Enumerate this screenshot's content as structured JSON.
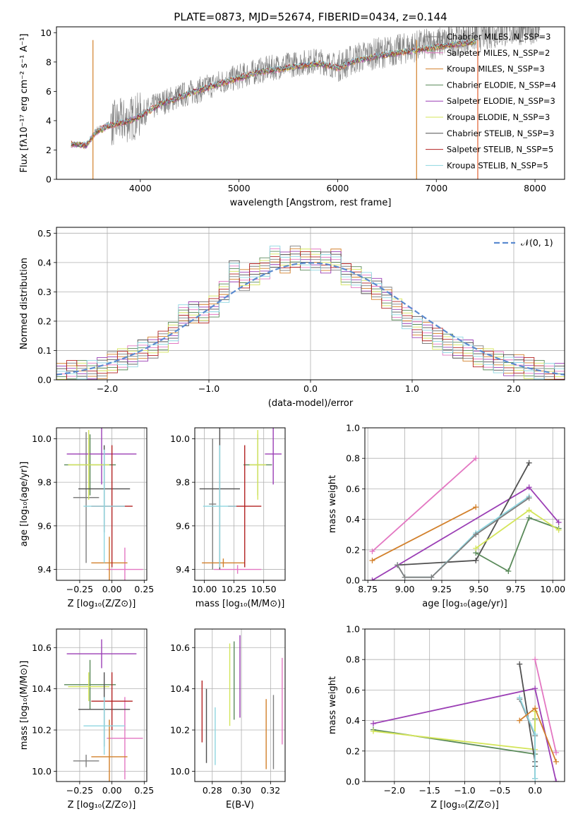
{
  "figure": {
    "title": "PLATE=0873, MJD=52674, FIBERID=0434, z=0.144"
  },
  "chart_data": [
    {
      "id": "spectrum",
      "type": "line",
      "xlabel": "wavelength [Angstrom, rest frame]",
      "ylabel": "Flux [fλ10⁻¹⁷ erg cm⁻² s⁻¹ A⁻¹]",
      "xlim": [
        3150,
        8300
      ],
      "ylim": [
        0,
        10.4
      ],
      "xticks": [
        4000,
        5000,
        6000,
        7000,
        8000
      ],
      "yticks": [
        0,
        2,
        4,
        6,
        8,
        10
      ],
      "observed": {
        "color": "#808080",
        "x": [
          3300,
          3450,
          3550,
          3700,
          3850,
          4000,
          4200,
          4400,
          4600,
          4800,
          5000,
          5200,
          5400,
          5600,
          5800,
          6000,
          6200,
          6400,
          6600,
          6800,
          7000,
          7200,
          7400,
          7600,
          7800,
          8000
        ],
        "y": [
          2.4,
          2.3,
          3.3,
          3.8,
          4.0,
          4.4,
          5.2,
          5.7,
          6.1,
          6.6,
          7.0,
          7.4,
          7.7,
          7.9,
          8.1,
          7.7,
          8.3,
          8.6,
          8.8,
          9.1,
          9.3,
          9.5,
          9.8,
          10.0,
          10.2,
          10.3
        ]
      },
      "legend_position": "upper right",
      "series": [
        {
          "name": "Chabrier MILES, N_SSP=3",
          "color": "#7f7f7f"
        },
        {
          "name": "Salpeter MILES, N_SSP=2",
          "color": "#e377c2"
        },
        {
          "name": "Kroupa MILES, N_SSP=3",
          "color": "#d2802b"
        },
        {
          "name": "Chabrier ELODIE, N_SSP=4",
          "color": "#5a8a5a"
        },
        {
          "name": "Salpeter ELODIE, N_SSP=3",
          "color": "#9b3fb5"
        },
        {
          "name": "Kroupa ELODIE, N_SSP=3",
          "color": "#d4e55a"
        },
        {
          "name": "Chabrier STELIB, N_SSP=3",
          "color": "#505050"
        },
        {
          "name": "Salpeter STELIB, N_SSP=5",
          "color": "#b22222"
        },
        {
          "name": "Kroupa STELIB, N_SSP=5",
          "color": "#8ed6e0"
        }
      ],
      "model": {
        "x": [
          3300,
          3450,
          3550,
          3700,
          3850,
          4000,
          4200,
          4400,
          4600,
          4800,
          5000,
          5200,
          5400,
          5600,
          5800,
          6000,
          6200,
          6400,
          6600,
          6800,
          7000,
          7200,
          7400
        ],
        "y": [
          2.4,
          2.3,
          3.2,
          3.7,
          3.9,
          4.3,
          5.1,
          5.6,
          6.1,
          6.5,
          6.9,
          7.3,
          7.5,
          7.7,
          7.9,
          7.6,
          8.1,
          8.4,
          8.6,
          8.8,
          9.0,
          9.2,
          9.4
        ]
      },
      "legend": [
        "Chabrier MILES, N_SSP=3",
        "Salpeter MILES, N_SSP=2",
        "Kroupa MILES, N_SSP=3",
        "Chabrier ELODIE, N_SSP=4",
        "Salpeter ELODIE, N_SSP=3",
        "Kroupa ELODIE, N_SSP=3",
        "Chabrier STELIB, N_SSP=3",
        "Salpeter STELIB, N_SSP=5",
        "Kroupa STELIB, N_SSP=5"
      ]
    },
    {
      "id": "residuals",
      "type": "histogram",
      "xlabel": "(data-model)/error",
      "ylabel": "Normed distribution",
      "xlim": [
        -2.5,
        2.5
      ],
      "ylim": [
        0,
        0.52
      ],
      "xticks": [
        -2,
        -1,
        0,
        1,
        2
      ],
      "yticks": [
        0.0,
        0.1,
        0.2,
        0.3,
        0.4,
        0.5
      ],
      "bin_edges": [
        -2.5,
        -2.4,
        -2.3,
        -2.2,
        -2.1,
        -2.0,
        -1.9,
        -1.8,
        -1.7,
        -1.6,
        -1.5,
        -1.4,
        -1.3,
        -1.2,
        -1.1,
        -1.0,
        -0.9,
        -0.8,
        -0.7,
        -0.6,
        -0.5,
        -0.4,
        -0.3,
        -0.2,
        -0.1,
        0.0,
        0.1,
        0.2,
        0.3,
        0.4,
        0.5,
        0.6,
        0.7,
        0.8,
        0.9,
        1.0,
        1.1,
        1.2,
        1.3,
        1.4,
        1.5,
        1.6,
        1.7,
        1.8,
        1.9,
        2.0,
        2.1,
        2.2,
        2.3,
        2.4,
        2.5
      ],
      "counts": [
        0.02,
        0.03,
        0.03,
        0.03,
        0.04,
        0.06,
        0.07,
        0.08,
        0.1,
        0.11,
        0.13,
        0.16,
        0.22,
        0.23,
        0.23,
        0.25,
        0.3,
        0.37,
        0.34,
        0.36,
        0.38,
        0.42,
        0.4,
        0.42,
        0.41,
        0.41,
        0.4,
        0.41,
        0.36,
        0.35,
        0.33,
        0.31,
        0.28,
        0.24,
        0.21,
        0.18,
        0.16,
        0.14,
        0.12,
        0.11,
        0.1,
        0.08,
        0.07,
        0.06,
        0.05,
        0.05,
        0.04,
        0.03,
        0.02,
        0.02
      ],
      "gaussian": {
        "name": "𝒩(0, 1)",
        "color": "#5b8bd0",
        "style": "dashed"
      }
    },
    {
      "id": "age-vs-Z",
      "type": "errorbar",
      "xlabel": "Z [log₁₀(Z/Z⊙)]",
      "ylabel": "age  [log₁₀(age/yr)]",
      "xlim": [
        -0.43,
        0.27
      ],
      "ylim": [
        9.35,
        10.05
      ],
      "xticks": [
        -0.25,
        0.0,
        0.25
      ],
      "yticks": [
        9.4,
        9.6,
        9.8,
        10.0
      ],
      "points": [
        {
          "color": "#7f7f7f",
          "x": -0.2,
          "xerr": 0.1,
          "y": 9.73,
          "yerr": 0.3
        },
        {
          "color": "#e377c2",
          "x": 0.1,
          "xerr": 0.14,
          "y": 9.4,
          "yerr": 0.1
        },
        {
          "color": "#d2802b",
          "x": -0.02,
          "xerr": 0.14,
          "y": 9.43,
          "yerr": 0.12
        },
        {
          "color": "#5a8a5a",
          "x": -0.17,
          "xerr": 0.2,
          "y": 9.88,
          "yerr": 0.14
        },
        {
          "color": "#9b3fb5",
          "x": -0.08,
          "xerr": 0.27,
          "y": 9.93,
          "yerr": 0.14
        },
        {
          "color": "#d4e55a",
          "x": -0.18,
          "xerr": 0.16,
          "y": 9.88,
          "yerr": 0.16
        },
        {
          "color": "#505050",
          "x": -0.06,
          "xerr": 0.2,
          "y": 9.77,
          "yerr": 0.2
        },
        {
          "color": "#b22222",
          "x": 0.0,
          "xerr": 0.16,
          "y": 9.69,
          "yerr": 0.28
        },
        {
          "color": "#8ed6e0",
          "x": -0.06,
          "xerr": 0.16,
          "y": 9.69,
          "yerr": 0.26
        }
      ]
    },
    {
      "id": "age-vs-mass",
      "type": "errorbar",
      "xlabel": "mass [log₁₀(M/M⊙)]",
      "ylabel": "",
      "xlim": [
        9.92,
        10.68
      ],
      "ylim": [
        9.35,
        10.05
      ],
      "xticks": [
        10.0,
        10.25,
        10.5
      ],
      "yticks": [
        9.4,
        9.6,
        9.8,
        10.0
      ],
      "points": [
        {
          "color": "#7f7f7f",
          "x": 10.07,
          "xerr": 0.03,
          "y": 9.7,
          "yerr": 0.3
        },
        {
          "color": "#e377c2",
          "x": 10.28,
          "xerr": 0.2,
          "y": 9.4,
          "yerr": 0.02
        },
        {
          "color": "#d2802b",
          "x": 10.16,
          "xerr": 0.18,
          "y": 9.43,
          "yerr": 0.02
        },
        {
          "color": "#5a8a5a",
          "x": 10.45,
          "xerr": 0.12,
          "y": 9.88,
          "yerr": 0.14
        },
        {
          "color": "#9b3fb5",
          "x": 10.58,
          "xerr": 0.07,
          "y": 9.93,
          "yerr": 0.14
        },
        {
          "color": "#d4e55a",
          "x": 10.45,
          "xerr": 0.07,
          "y": 9.88,
          "yerr": 0.16
        },
        {
          "color": "#505050",
          "x": 10.13,
          "xerr": 0.17,
          "y": 9.77,
          "yerr": 0.37
        },
        {
          "color": "#b22222",
          "x": 10.34,
          "xerr": 0.14,
          "y": 9.69,
          "yerr": 0.28
        },
        {
          "color": "#8ed6e0",
          "x": 10.13,
          "xerr": 0.14,
          "y": 9.69,
          "yerr": 0.28
        }
      ]
    },
    {
      "id": "weight-vs-age",
      "type": "line",
      "xlabel": "age  [log₁₀(age/yr)]",
      "ylabel": "mass weight",
      "xlim": [
        8.73,
        10.08
      ],
      "ylim": [
        0,
        1.0
      ],
      "xticks": [
        8.75,
        9.0,
        9.25,
        9.5,
        9.75,
        10.0
      ],
      "yticks": [
        0.0,
        0.2,
        0.4,
        0.6,
        0.8,
        1.0
      ],
      "series": [
        {
          "color": "#e377c2",
          "x": [
            8.78,
            9.48
          ],
          "y": [
            0.19,
            0.8
          ]
        },
        {
          "color": "#d2802b",
          "x": [
            8.78,
            9.48
          ],
          "y": [
            0.13,
            0.48
          ]
        },
        {
          "color": "#9b3fb5",
          "x": [
            8.78,
            9.84,
            10.04
          ],
          "y": [
            0.0,
            0.61,
            0.38
          ]
        },
        {
          "color": "#505050",
          "x": [
            8.95,
            9.48,
            9.84
          ],
          "y": [
            0.1,
            0.13,
            0.77
          ]
        },
        {
          "color": "#8ed6e0",
          "x": [
            8.95,
            9.0,
            9.18,
            9.48,
            9.84
          ],
          "y": [
            0.1,
            0.02,
            0.02,
            0.31,
            0.55
          ]
        },
        {
          "color": "#7f7f7f",
          "x": [
            8.95,
            9.0,
            9.18,
            9.48,
            9.84
          ],
          "y": [
            0.1,
            0.02,
            0.02,
            0.3,
            0.54
          ]
        },
        {
          "color": "#5a8a5a",
          "x": [
            9.48,
            9.7,
            9.84,
            10.04
          ],
          "y": [
            0.18,
            0.06,
            0.41,
            0.34
          ]
        },
        {
          "color": "#d4e55a",
          "x": [
            9.48,
            9.84,
            10.04
          ],
          "y": [
            0.21,
            0.46,
            0.33
          ]
        }
      ]
    },
    {
      "id": "mass-vs-Z",
      "type": "errorbar",
      "xlabel": "Z [log₁₀(Z/Z⊙)]",
      "ylabel": "mass [log₁₀(M/M⊙)]",
      "xlim": [
        -0.43,
        0.27
      ],
      "ylim": [
        9.95,
        10.69
      ],
      "xticks": [
        -0.25,
        0.0,
        0.25
      ],
      "yticks": [
        10.0,
        10.2,
        10.4,
        10.6
      ],
      "points": [
        {
          "color": "#7f7f7f",
          "x": -0.2,
          "xerr": 0.1,
          "y": 10.05,
          "yerr": 0.03
        },
        {
          "color": "#e377c2",
          "x": 0.1,
          "xerr": 0.14,
          "y": 10.16,
          "yerr": 0.2
        },
        {
          "color": "#d2802b",
          "x": -0.02,
          "xerr": 0.14,
          "y": 10.07,
          "yerr": 0.18
        },
        {
          "color": "#5a8a5a",
          "x": -0.17,
          "xerr": 0.2,
          "y": 10.42,
          "yerr": 0.12
        },
        {
          "color": "#9b3fb5",
          "x": -0.08,
          "xerr": 0.27,
          "y": 10.57,
          "yerr": 0.07
        },
        {
          "color": "#d4e55a",
          "x": -0.18,
          "xerr": 0.16,
          "y": 10.41,
          "yerr": 0.07
        },
        {
          "color": "#505050",
          "x": -0.06,
          "xerr": 0.2,
          "y": 10.3,
          "yerr": 0.18
        },
        {
          "color": "#b22222",
          "x": 0.0,
          "xerr": 0.16,
          "y": 10.34,
          "yerr": 0.14
        },
        {
          "color": "#8ed6e0",
          "x": -0.06,
          "xerr": 0.16,
          "y": 10.22,
          "yerr": 0.14
        }
      ]
    },
    {
      "id": "mass-vs-ebv",
      "type": "errorbar",
      "xlabel": "E(B-V)",
      "ylabel": "",
      "xlim": [
        0.268,
        0.33
      ],
      "ylim": [
        9.95,
        10.69
      ],
      "xticks": [
        0.28,
        0.3,
        0.32
      ],
      "yticks": [
        10.0,
        10.2,
        10.4,
        10.6
      ],
      "points": [
        {
          "color": "#b22222",
          "x": 0.273,
          "y": 10.29,
          "yerr": 0.15
        },
        {
          "color": "#505050",
          "x": 0.276,
          "y": 10.22,
          "yerr": 0.18
        },
        {
          "color": "#8ed6e0",
          "x": 0.282,
          "y": 10.17,
          "yerr": 0.14
        },
        {
          "color": "#d4e55a",
          "x": 0.292,
          "y": 10.42,
          "yerr": 0.2
        },
        {
          "color": "#5a8a5a",
          "x": 0.295,
          "y": 10.44,
          "yerr": 0.19
        },
        {
          "color": "#9b3fb5",
          "x": 0.299,
          "y": 10.46,
          "yerr": 0.2
        },
        {
          "color": "#d2802b",
          "x": 0.317,
          "y": 10.18,
          "yerr": 0.17
        },
        {
          "color": "#7f7f7f",
          "x": 0.322,
          "y": 10.19,
          "yerr": 0.18
        },
        {
          "color": "#e377c2",
          "x": 0.328,
          "y": 10.34,
          "yerr": 0.21
        }
      ]
    },
    {
      "id": "weight-vs-Z",
      "type": "line",
      "xlabel": "Z [log₁₀(Z/Z⊙)]",
      "ylabel": "mass weight",
      "xlim": [
        -2.42,
        0.42
      ],
      "ylim": [
        0,
        1.0
      ],
      "xticks": [
        -2.0,
        -1.5,
        -1.0,
        -0.5,
        0.0
      ],
      "yticks": [
        0.0,
        0.2,
        0.4,
        0.6,
        0.8,
        1.0
      ],
      "series": [
        {
          "color": "#9b3fb5",
          "x": [
            -2.3,
            0.0,
            0.3
          ],
          "y": [
            0.38,
            0.61,
            0.0
          ]
        },
        {
          "color": "#5a8a5a",
          "x": [
            -2.3,
            0.0,
            0.0
          ],
          "y": [
            0.34,
            0.18,
            0.41
          ]
        },
        {
          "color": "#d4e55a",
          "x": [
            -2.3,
            0.0,
            0.0
          ],
          "y": [
            0.33,
            0.21,
            0.46
          ]
        },
        {
          "color": "#505050",
          "x": [
            -0.22,
            0.0,
            0.0
          ],
          "y": [
            0.77,
            0.13,
            0.1
          ]
        },
        {
          "color": "#7f7f7f",
          "x": [
            -0.22,
            0.0,
            0.0
          ],
          "y": [
            0.54,
            0.3,
            0.02
          ]
        },
        {
          "color": "#8ed6e0",
          "x": [
            -0.22,
            0.0,
            0.0
          ],
          "y": [
            0.55,
            0.31,
            0.02
          ]
        },
        {
          "color": "#d2802b",
          "x": [
            -0.22,
            0.0,
            0.3
          ],
          "y": [
            0.4,
            0.48,
            0.13
          ]
        },
        {
          "color": "#e377c2",
          "x": [
            0.0,
            0.3
          ],
          "y": [
            0.8,
            0.19
          ]
        }
      ]
    }
  ]
}
